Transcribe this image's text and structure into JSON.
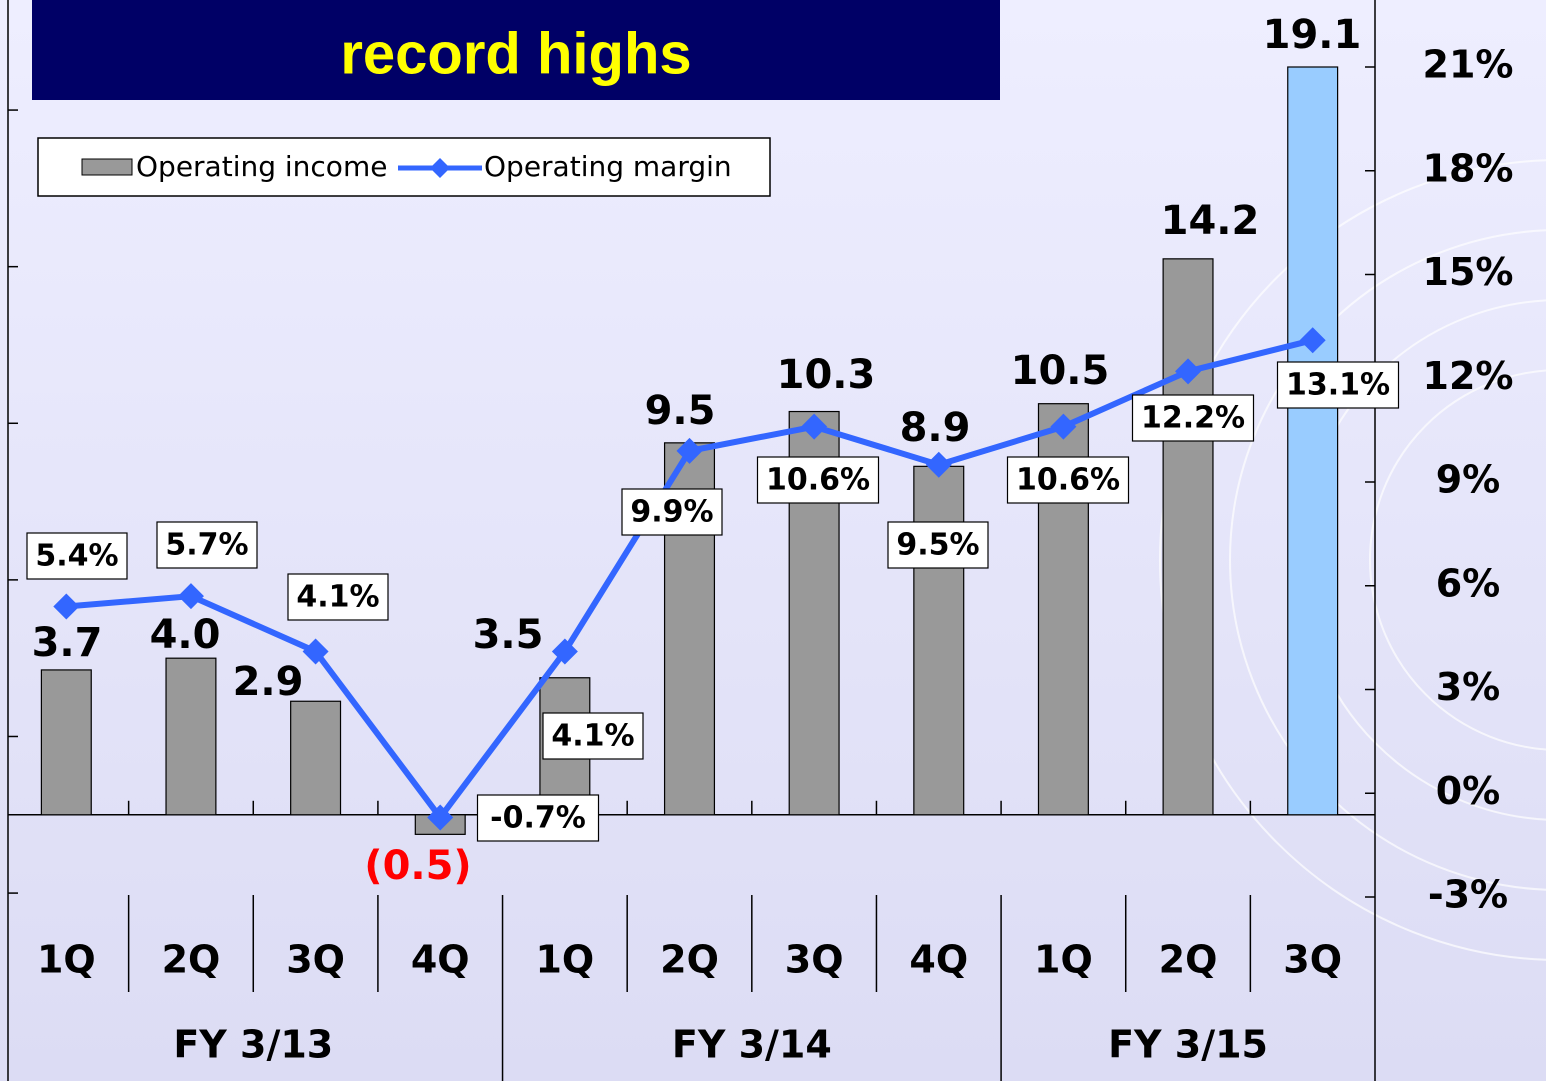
{
  "chart_data": {
    "type": "bar_line",
    "title": "record highs",
    "categories": [
      "1Q",
      "2Q",
      "3Q",
      "4Q",
      "1Q",
      "2Q",
      "3Q",
      "4Q",
      "1Q",
      "2Q",
      "3Q"
    ],
    "groups": [
      {
        "name": "FY 3/13",
        "size": 4
      },
      {
        "name": "FY 3/14",
        "size": 4
      },
      {
        "name": "FY 3/15",
        "size": 3
      }
    ],
    "series": [
      {
        "name": "Operating income",
        "type": "bar",
        "axis": "y",
        "color": "#999999",
        "colors": [
          "#999999",
          "#999999",
          "#999999",
          "#999999",
          "#999999",
          "#999999",
          "#999999",
          "#999999",
          "#999999",
          "#999999",
          "#99ccff"
        ],
        "values": [
          3.7,
          4.0,
          2.9,
          -0.5,
          3.5,
          9.5,
          10.3,
          8.9,
          10.5,
          14.2,
          19.1
        ],
        "value_labels": [
          "3.7",
          "4.0",
          "2.9",
          "(0.5)",
          "3.5",
          "9.5",
          "10.3",
          "8.9",
          "10.5",
          "14.2",
          "19.1"
        ],
        "label_colors": [
          "#000000",
          "#000000",
          "#000000",
          "#ff0000",
          "#000000",
          "#000000",
          "#000000",
          "#000000",
          "#000000",
          "#000000",
          "#000000"
        ]
      },
      {
        "name": "Operating margin",
        "type": "line",
        "axis": "y2",
        "color": "#3366ff",
        "values": [
          5.4,
          5.7,
          4.1,
          -0.7,
          4.1,
          9.9,
          10.6,
          9.5,
          10.6,
          12.2,
          13.1
        ],
        "value_labels": [
          "5.4%",
          "5.7%",
          "4.1%",
          "-0.7%",
          "4.1%",
          "9.9%",
          "10.6%",
          "9.5%",
          "10.6%",
          "12.2%",
          "13.1%"
        ]
      }
    ],
    "ylim": [
      -2.1,
      19.1
    ],
    "yticks": [
      -2,
      2,
      6,
      10,
      14,
      18
    ],
    "y2lim": [
      -3,
      21
    ],
    "y2ticks": [
      {
        "value": -3,
        "label": "-3%"
      },
      {
        "value": 0,
        "label": "0%"
      },
      {
        "value": 3,
        "label": "3%"
      },
      {
        "value": 6,
        "label": "6%"
      },
      {
        "value": 9,
        "label": "9%"
      },
      {
        "value": 12,
        "label": "12%"
      },
      {
        "value": 15,
        "label": "15%"
      },
      {
        "value": 18,
        "label": "18%"
      },
      {
        "value": 21,
        "label": "21%"
      }
    ],
    "legend": "top-left"
  }
}
